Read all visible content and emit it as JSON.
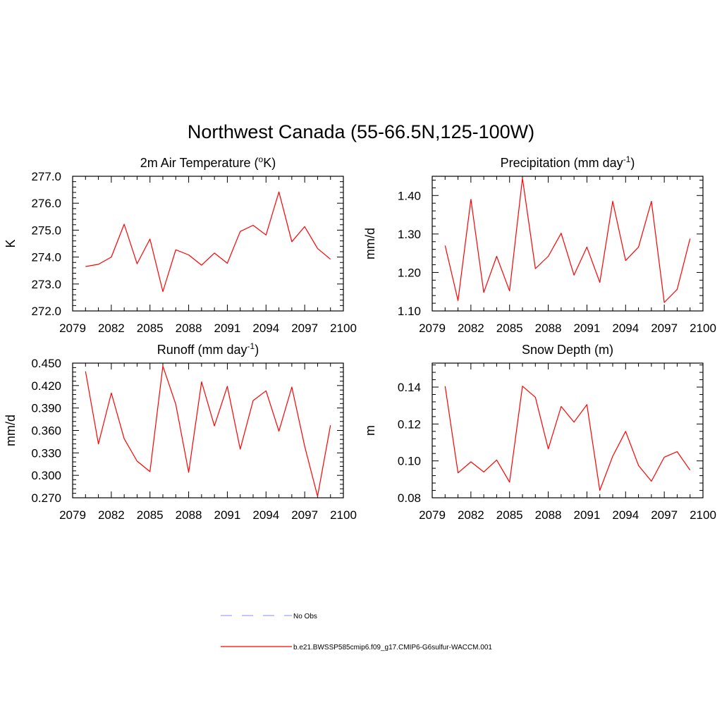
{
  "figure_title": "Northwest Canada (55-66.5N,125-100W)",
  "legend": [
    {
      "label": "No Obs",
      "color": "#a0a0ff",
      "style": "dashed"
    },
    {
      "label": "b.e21.BWSSP585cmip6.f09_g17.CMIP6-G6sulfur-WACCM.001",
      "color": "#ff0000",
      "style": "solid"
    }
  ],
  "chart_data": [
    {
      "type": "line",
      "title": "2m Air Temperature (",
      "title_sup": "o",
      "title_tail": "K)",
      "ylabel": "K",
      "xlim": [
        2079,
        2100
      ],
      "ylim": [
        272.0,
        277.0
      ],
      "x_ticks": [
        "2079",
        "2082",
        "2085",
        "2088",
        "2091",
        "2094",
        "2097",
        "2100"
      ],
      "y_ticks": [
        272.0,
        273.0,
        274.0,
        275.0,
        276.0,
        277.0
      ],
      "y_tick_labels": [
        "272.0",
        "273.0",
        "274.0",
        "275.0",
        "276.0",
        "277.0"
      ],
      "x": [
        2080,
        2081,
        2082,
        2083,
        2084,
        2085,
        2086,
        2087,
        2088,
        2089,
        2090,
        2091,
        2092,
        2093,
        2094,
        2095,
        2096,
        2097,
        2098,
        2099
      ],
      "series": [
        {
          "color": "#ff0000",
          "values": [
            273.65,
            273.73,
            274.0,
            275.22,
            273.75,
            274.67,
            272.72,
            274.27,
            274.08,
            273.7,
            274.15,
            273.77,
            274.95,
            275.18,
            274.82,
            276.42,
            274.57,
            275.13,
            274.32,
            273.92
          ]
        }
      ]
    },
    {
      "type": "line",
      "title": "Precipitation (mm day",
      "title_sup": "-1",
      "title_tail": ")",
      "ylabel": "mm/d",
      "xlim": [
        2079,
        2100
      ],
      "ylim": [
        1.1,
        1.45
      ],
      "x_ticks": [
        "2079",
        "2082",
        "2085",
        "2088",
        "2091",
        "2094",
        "2097",
        "2100"
      ],
      "y_ticks": [
        1.1,
        1.2,
        1.3,
        1.4
      ],
      "y_tick_labels": [
        "1.10",
        "1.20",
        "1.30",
        "1.40"
      ],
      "x": [
        2080,
        2081,
        2082,
        2083,
        2084,
        2085,
        2086,
        2087,
        2088,
        2089,
        2090,
        2091,
        2092,
        2093,
        2094,
        2095,
        2096,
        2097,
        2098,
        2099
      ],
      "series": [
        {
          "color": "#ff0000",
          "values": [
            1.27,
            1.127,
            1.39,
            1.148,
            1.242,
            1.152,
            1.445,
            1.21,
            1.242,
            1.302,
            1.193,
            1.266,
            1.174,
            1.385,
            1.231,
            1.266,
            1.385,
            1.122,
            1.156,
            1.288
          ]
        }
      ]
    },
    {
      "type": "line",
      "title": "Runoff (mm day",
      "title_sup": "-1",
      "title_tail": ")",
      "ylabel": "mm/d",
      "xlim": [
        2079,
        2100
      ],
      "ylim": [
        0.27,
        0.45
      ],
      "x_ticks": [
        "2079",
        "2082",
        "2085",
        "2088",
        "2091",
        "2094",
        "2097",
        "2100"
      ],
      "y_ticks": [
        0.27,
        0.3,
        0.33,
        0.36,
        0.39,
        0.42,
        0.45
      ],
      "y_tick_labels": [
        "0.270",
        "0.300",
        "0.330",
        "0.360",
        "0.390",
        "0.420",
        "0.450"
      ],
      "x": [
        2080,
        2081,
        2082,
        2083,
        2084,
        2085,
        2086,
        2087,
        2088,
        2089,
        2090,
        2091,
        2092,
        2093,
        2094,
        2095,
        2096,
        2097,
        2098,
        2099
      ],
      "series": [
        {
          "color": "#ff0000",
          "values": [
            0.439,
            0.342,
            0.41,
            0.349,
            0.319,
            0.305,
            0.446,
            0.395,
            0.304,
            0.425,
            0.366,
            0.419,
            0.335,
            0.4,
            0.413,
            0.359,
            0.418,
            0.339,
            0.272,
            0.367
          ]
        }
      ]
    },
    {
      "type": "line",
      "title": "Snow Depth (m)",
      "title_sup": "",
      "title_tail": "",
      "ylabel": "m",
      "xlim": [
        2079,
        2100
      ],
      "ylim": [
        0.08,
        0.153
      ],
      "x_ticks": [
        "2079",
        "2082",
        "2085",
        "2088",
        "2091",
        "2094",
        "2097",
        "2100"
      ],
      "y_ticks": [
        0.08,
        0.1,
        0.12,
        0.14
      ],
      "y_tick_labels": [
        "0.08",
        "0.10",
        "0.12",
        "0.14"
      ],
      "x": [
        2080,
        2081,
        2082,
        2083,
        2084,
        2085,
        2086,
        2087,
        2088,
        2089,
        2090,
        2091,
        2092,
        2093,
        2094,
        2095,
        2096,
        2097,
        2098,
        2099
      ],
      "series": [
        {
          "color": "#ff0000",
          "values": [
            0.1405,
            0.0935,
            0.0995,
            0.094,
            0.1005,
            0.0885,
            0.1405,
            0.1345,
            0.1065,
            0.1295,
            0.121,
            0.1305,
            0.084,
            0.1025,
            0.116,
            0.0975,
            0.089,
            0.102,
            0.105,
            0.095
          ]
        }
      ]
    }
  ]
}
